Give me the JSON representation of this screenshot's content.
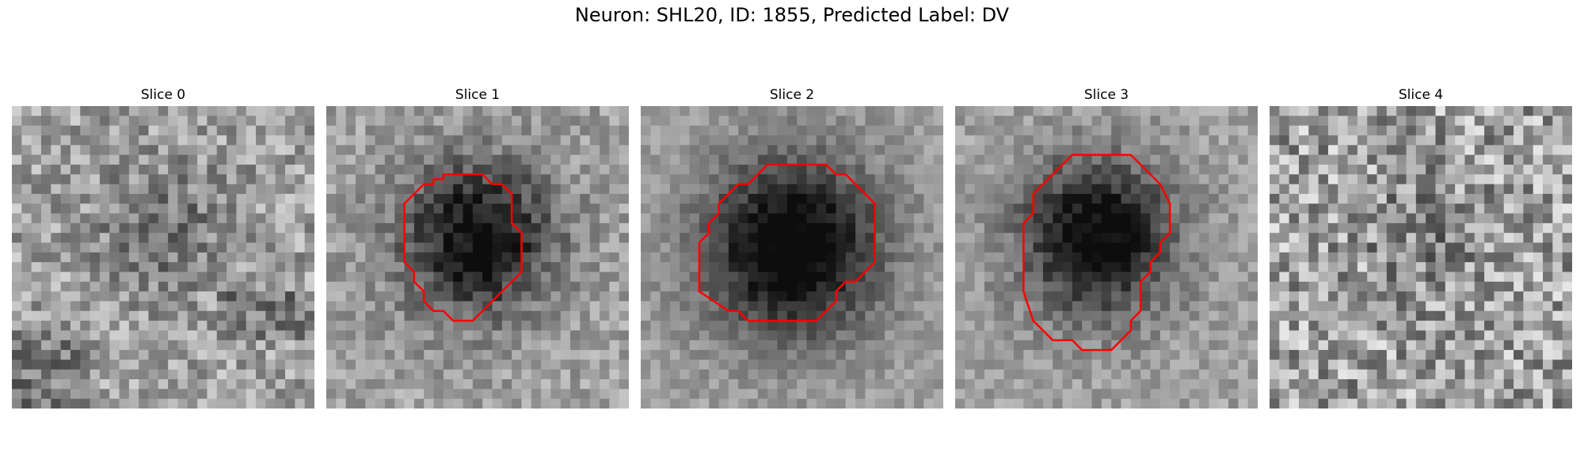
{
  "figure": {
    "title": "Neuron: SHL20, ID: 1855, Predicted Label: DV",
    "contour_color": "#ff0000"
  },
  "panels": [
    {
      "title": "Slice 0",
      "has_contour": false,
      "cell_mean_darkness": 0.2,
      "noise": 0.2
    },
    {
      "title": "Slice 1",
      "has_contour": true,
      "cell_mean_darkness": 0.62,
      "noise": 0.14
    },
    {
      "title": "Slice 2",
      "has_contour": true,
      "cell_mean_darkness": 0.7,
      "noise": 0.1
    },
    {
      "title": "Slice 3",
      "has_contour": true,
      "cell_mean_darkness": 0.66,
      "noise": 0.12
    },
    {
      "title": "Slice 4",
      "has_contour": false,
      "cell_mean_darkness": 0.12,
      "noise": 0.28
    }
  ]
}
